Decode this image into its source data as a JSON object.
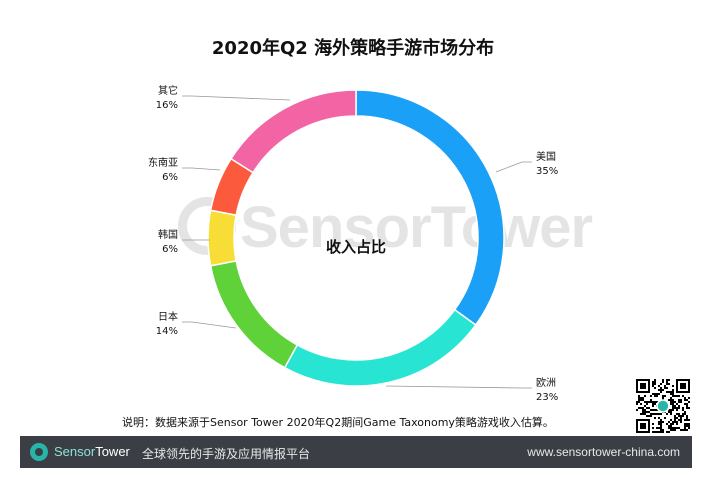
{
  "chart_data": {
    "type": "pie",
    "title": "2020年Q2 海外策略手游市场分布",
    "center_label": "收入占比",
    "donut": true,
    "categories": [
      "美国",
      "欧洲",
      "日本",
      "韩国",
      "东南亚",
      "其它"
    ],
    "values": [
      35,
      23,
      14,
      6,
      6,
      16
    ],
    "value_labels": [
      "35%",
      "23%",
      "14%",
      "6%",
      "6%",
      "16%"
    ],
    "colors": [
      "#1aa0f7",
      "#27e5d2",
      "#5fd23a",
      "#f7dd35",
      "#fb5b3c",
      "#f364a5"
    ]
  },
  "note": "说明：数据来源于Sensor Tower 2020年Q2期间Game Taxonomy策略游戏收入估算。",
  "watermark": "SensorTower",
  "footer": {
    "brand_part1": "Sensor",
    "brand_part2": "Tower",
    "tagline": "全球领先的手游及应用情报平台",
    "url": "www.sensortower-china.com"
  }
}
